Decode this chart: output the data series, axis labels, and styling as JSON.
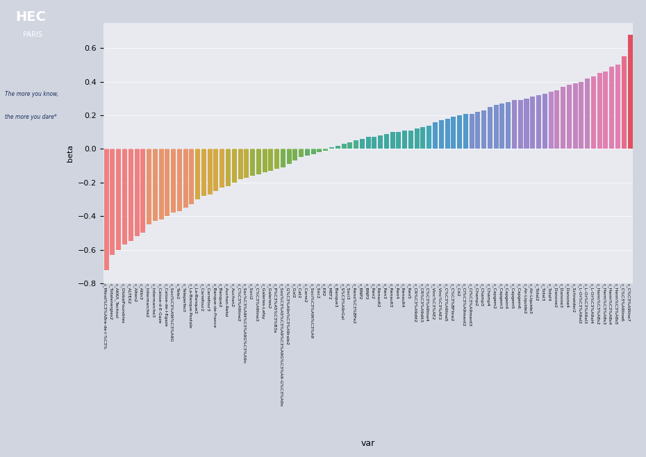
{
  "ylabel": "beta",
  "xlabel": "var",
  "background_color": "#E8EAF0",
  "plot_bg": "#E8EAF0",
  "ylim": [
    -0.8,
    0.75
  ],
  "yticks": [
    -0.8,
    -0.6,
    -0.4,
    -0.2,
    0.0,
    0.2,
    0.4,
    0.6
  ],
  "bars": [
    {
      "label": "c_Minst%C3%A8re-de-l-%C3%",
      "value": -0.72,
      "color": "#F08080"
    },
    {
      "label": "c_Totalenergies2",
      "value": -0.63,
      "color": "#F08080"
    },
    {
      "label": "c_AKKA_Technol",
      "value": -0.6,
      "color": "#F08080"
    },
    {
      "label": "c_GlobalFoundries",
      "value": -0.57,
      "color": "#F08080"
    },
    {
      "label": "c_ALTEX2",
      "value": -0.55,
      "color": "#F08080"
    },
    {
      "label": "c_Alten2",
      "value": -0.52,
      "color": "#F08080"
    },
    {
      "label": "c_Attn3",
      "value": -0.5,
      "color": "#F08080"
    },
    {
      "label": "c_Intermarche2",
      "value": -0.45,
      "color": "#E8956D"
    },
    {
      "label": "c_Intermarche3",
      "value": -0.43,
      "color": "#E8956D"
    },
    {
      "label": "c_Caisse-d-E-Gaze",
      "value": -0.42,
      "color": "#E8956D"
    },
    {
      "label": "c_Caisse-de-l-Egaze",
      "value": -0.4,
      "color": "#E8956D"
    },
    {
      "label": "c_Soci%C3%A9t%C3%A9G",
      "value": -0.38,
      "color": "#E8956D"
    },
    {
      "label": "c_Tele2",
      "value": -0.37,
      "color": "#E8956D"
    },
    {
      "label": "c_Teleperfect",
      "value": -0.35,
      "color": "#E8956D"
    },
    {
      "label": "c_La-Banque-Postale",
      "value": -0.33,
      "color": "#E8956D"
    },
    {
      "label": "c_La-Banque2",
      "value": -0.3,
      "color": "#D4A843"
    },
    {
      "label": "c_Carrefour2",
      "value": -0.28,
      "color": "#D4A843"
    },
    {
      "label": "c_Carrefour3",
      "value": -0.27,
      "color": "#D4A843"
    },
    {
      "label": "c_Banque-de-France",
      "value": -0.25,
      "color": "#D4A843"
    },
    {
      "label": "c_Banque2",
      "value": -0.23,
      "color": "#D4A843"
    },
    {
      "label": "c_Auchan-Retai",
      "value": -0.22,
      "color": "#BFAD40"
    },
    {
      "label": "c_Auchan2",
      "value": -0.2,
      "color": "#BFAD40"
    },
    {
      "label": "c_C%C3%A9line2",
      "value": -0.18,
      "color": "#BFAD40"
    },
    {
      "label": "c_Soc%C3%A9t%C3%A9G%C3%A9n",
      "value": -0.17,
      "color": "#BFAD40"
    },
    {
      "label": "c_Soci2",
      "value": -0.16,
      "color": "#9AB040"
    },
    {
      "label": "c_C%C3%A9line3",
      "value": -0.15,
      "color": "#9AB040"
    },
    {
      "label": "c_Galeries-Lafay",
      "value": -0.14,
      "color": "#9AB040"
    },
    {
      "label": "c_Galeries2",
      "value": -0.13,
      "color": "#9AB040"
    },
    {
      "label": "c_P%C3%A5%C3%B3a",
      "value": -0.12,
      "color": "#9AB040"
    },
    {
      "label": "c_Soo%C3%A5%C3%A9%C3%A9G%C3%A9-G%C3%A9n",
      "value": -0.11,
      "color": "#78B050"
    },
    {
      "label": "c_G%C3%A9n%C3%A9rale2",
      "value": -0.09,
      "color": "#78B050"
    },
    {
      "label": "c_Gal2",
      "value": -0.07,
      "color": "#78B050"
    },
    {
      "label": "c_Cat2",
      "value": -0.05,
      "color": "#78B050"
    },
    {
      "label": "c_Carre2",
      "value": -0.04,
      "color": "#60B060"
    },
    {
      "label": "c_Soci%C3%A9t%C3%A9",
      "value": -0.03,
      "color": "#60B060"
    },
    {
      "label": "c_Soc2",
      "value": -0.02,
      "color": "#60B060"
    },
    {
      "label": "c_Elf2",
      "value": -0.01,
      "color": "#60B060"
    },
    {
      "label": "c_MEF2",
      "value": 0.01,
      "color": "#4CAF8A"
    },
    {
      "label": "c_Banque3",
      "value": 0.02,
      "color": "#4CAF8A"
    },
    {
      "label": "c_S%C3%A9rGal",
      "value": 0.03,
      "color": "#4CAF8A"
    },
    {
      "label": "c_Soci3",
      "value": 0.04,
      "color": "#4CAF8A"
    },
    {
      "label": "c_Reno%C3%BFe2",
      "value": 0.05,
      "color": "#4CAF8A"
    },
    {
      "label": "c_BNP2",
      "value": 0.06,
      "color": "#40A8A0"
    },
    {
      "label": "c_BNP3",
      "value": 0.07,
      "color": "#40A8A0"
    },
    {
      "label": "c_Ren2",
      "value": 0.07,
      "color": "#40A8A0"
    },
    {
      "label": "c_Renault2",
      "value": 0.08,
      "color": "#40A8A0"
    },
    {
      "label": "c_Ren3",
      "value": 0.09,
      "color": "#40A8A0"
    },
    {
      "label": "c_Renault3",
      "value": 0.1,
      "color": "#40A8A0"
    },
    {
      "label": "c_Ren4",
      "value": 0.1,
      "color": "#40A8A0"
    },
    {
      "label": "c_Renault4",
      "value": 0.11,
      "color": "#40A8A0"
    },
    {
      "label": "c_Ren5",
      "value": 0.11,
      "color": "#40A8A0"
    },
    {
      "label": "c_CR%C3%A9dit2",
      "value": 0.12,
      "color": "#40A8A0"
    },
    {
      "label": "c_CR%C3%A9dit3",
      "value": 0.13,
      "color": "#40A8A0"
    },
    {
      "label": "c_C%C3%A9line4",
      "value": 0.14,
      "color": "#40A8B8"
    },
    {
      "label": "c_Vinc%C3%AE2",
      "value": 0.16,
      "color": "#5099C8"
    },
    {
      "label": "c_Vinc%C3%AE3",
      "value": 0.17,
      "color": "#5099C8"
    },
    {
      "label": "c_C%C3%A9line5",
      "value": 0.18,
      "color": "#5099C8"
    },
    {
      "label": "c_C%C3%BFline2",
      "value": 0.19,
      "color": "#5099C8"
    },
    {
      "label": "c_Cé2",
      "value": 0.2,
      "color": "#5099C8"
    },
    {
      "label": "c_Cl%C3%A9ment2",
      "value": 0.21,
      "color": "#5099C8"
    },
    {
      "label": "c_Cl%C3%A9ment3",
      "value": 0.21,
      "color": "#7B90CC"
    },
    {
      "label": "c_Champ2",
      "value": 0.22,
      "color": "#7B90CC"
    },
    {
      "label": "c_Champ3",
      "value": 0.23,
      "color": "#7B90CC"
    },
    {
      "label": "c_Champ4",
      "value": 0.25,
      "color": "#7B90CC"
    },
    {
      "label": "c_Capgem2",
      "value": 0.26,
      "color": "#7B90CC"
    },
    {
      "label": "c_Capgem3",
      "value": 0.27,
      "color": "#7B90CC"
    },
    {
      "label": "c_Capgem4",
      "value": 0.28,
      "color": "#7B90CC"
    },
    {
      "label": "c_Capgem5",
      "value": 0.29,
      "color": "#9B88CC"
    },
    {
      "label": "c_Capgem6",
      "value": 0.29,
      "color": "#9B88CC"
    },
    {
      "label": "c_Air-Liquide2",
      "value": 0.3,
      "color": "#9B88CC"
    },
    {
      "label": "c_Air-Liquide3",
      "value": 0.31,
      "color": "#9B88CC"
    },
    {
      "label": "c_Total2",
      "value": 0.32,
      "color": "#9B88CC"
    },
    {
      "label": "c_Total3",
      "value": 0.33,
      "color": "#9B88CC"
    },
    {
      "label": "c_Total4",
      "value": 0.34,
      "color": "#BC88CC"
    },
    {
      "label": "c_Danone2",
      "value": 0.35,
      "color": "#C585BE"
    },
    {
      "label": "c_Danone3",
      "value": 0.37,
      "color": "#C585BE"
    },
    {
      "label": "c_Danone4",
      "value": 0.38,
      "color": "#C585BE"
    },
    {
      "label": "c_Schneider2",
      "value": 0.39,
      "color": "#C585BE"
    },
    {
      "label": "c_L-Or%C3%A9al2",
      "value": 0.4,
      "color": "#C585BE"
    },
    {
      "label": "c_L-Or%C3%A9al3",
      "value": 0.42,
      "color": "#C585BE"
    },
    {
      "label": "c_L-Or%C3%A9al4",
      "value": 0.43,
      "color": "#E07FB0"
    },
    {
      "label": "c_Herm%C3%A8s2",
      "value": 0.45,
      "color": "#E07FB0"
    },
    {
      "label": "c_Herm%C3%A8s3",
      "value": 0.46,
      "color": "#E07FB0"
    },
    {
      "label": "c_Herm%C3%A8s4",
      "value": 0.49,
      "color": "#E07FB0"
    },
    {
      "label": "c_Herm%C3%A8s5",
      "value": 0.5,
      "color": "#E07FB0"
    },
    {
      "label": "c_C%C3%A9line6",
      "value": 0.55,
      "color": "#E86B8A"
    },
    {
      "label": "c_C%C3%A9line7",
      "value": 0.68,
      "color": "#E05060"
    }
  ]
}
